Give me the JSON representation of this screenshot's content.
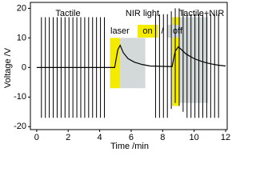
{
  "chart_data": {
    "type": "line",
    "xlabel": "Time /min",
    "ylabel": "Voltage /V",
    "xlim": [
      -0.4,
      12.1
    ],
    "ylim": [
      -21,
      22
    ],
    "xticks": [
      0,
      2,
      4,
      6,
      8,
      10,
      12
    ],
    "yticks": [
      -20,
      -10,
      0,
      10,
      20
    ],
    "annotations": [
      "Tactile",
      "NIR light",
      "Tactile+NIR"
    ],
    "laser_legend": {
      "label": "laser",
      "on": "on",
      "sep": "/",
      "off": "off"
    },
    "line_color": "#000000",
    "bands": [
      {
        "start": 4.65,
        "end": 5.3,
        "low": -7,
        "high": 10,
        "color": "#f5eb00"
      },
      {
        "start": 5.3,
        "end": 6.9,
        "low": -7,
        "high": 10,
        "color": "#d3d9d9"
      },
      {
        "start": 9.0,
        "end": 10.9,
        "low": -12,
        "high": 17,
        "color": "#d3d9d9"
      },
      {
        "start": 8.6,
        "end": 9.05,
        "low": -13,
        "high": 17,
        "color": "#f5eb00"
      }
    ],
    "spikes": {
      "x": [
        0.3,
        0.55,
        0.8,
        1.05,
        1.3,
        1.55,
        1.8,
        2.05,
        2.3,
        2.55,
        2.8,
        3.05,
        3.3,
        3.55,
        3.8,
        4.05,
        4.3,
        7.55,
        7.8,
        8.05,
        8.3,
        8.55,
        8.8,
        9.05,
        9.3,
        9.55,
        9.8,
        10.05,
        10.3,
        10.55,
        10.8,
        11.05,
        11.3,
        11.55
      ],
      "high": [
        17,
        17,
        17,
        17,
        17,
        17,
        17,
        17,
        17,
        17,
        17,
        17,
        17,
        17,
        17,
        17,
        17,
        18,
        18,
        18,
        18,
        19,
        20,
        20,
        19,
        18,
        18,
        18,
        18,
        18,
        18,
        18,
        18,
        18
      ],
      "low": [
        -17,
        -17,
        -17,
        -17,
        -17,
        -17,
        -17,
        -17,
        -17,
        -17,
        -17,
        -17,
        -17,
        -17,
        -17,
        -17,
        -17,
        -17,
        -17,
        -17,
        -17,
        -14,
        -12,
        -13,
        -15,
        -17,
        -17,
        -17,
        -17,
        -17,
        -17,
        -17,
        -17,
        -17
      ]
    },
    "curve": {
      "x": [
        0,
        4.95,
        5.05,
        5.15,
        5.3,
        5.5,
        5.8,
        6.2,
        6.7,
        7.2,
        8.6,
        8.7,
        8.8,
        9.0,
        9.2,
        9.5,
        10,
        10.5,
        11,
        11.5,
        12
      ],
      "values": [
        0,
        0,
        3,
        6,
        7.5,
        5,
        3,
        1.8,
        1,
        0.5,
        0.3,
        3,
        5.5,
        7,
        6,
        4.5,
        3,
        2,
        1.3,
        0.8,
        0.5
      ]
    }
  }
}
